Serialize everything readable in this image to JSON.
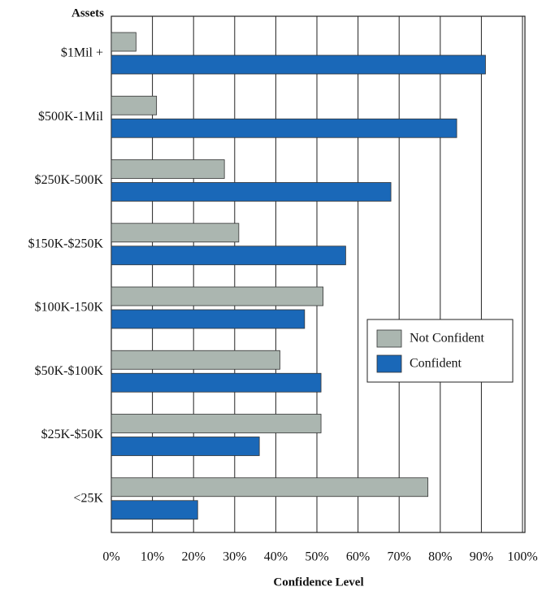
{
  "chart_data": {
    "type": "bar",
    "orientation": "horizontal",
    "y_label": "Assets",
    "x_label": "Confidence Level",
    "categories": [
      "$1Mil +",
      "$500K-1Mil",
      "$250K-500K",
      "$150K-$250K",
      "$100K-150K",
      "$50K-$100K",
      "$25K-$50K",
      "<25K"
    ],
    "series": [
      {
        "name": "Not Confident",
        "color": "#abb6b0",
        "values": [
          6,
          11,
          27.5,
          31,
          51.5,
          41,
          51,
          77
        ]
      },
      {
        "name": "Confident",
        "color": "#1a68b8",
        "values": [
          91,
          84,
          68,
          57,
          47,
          51,
          36,
          21
        ]
      }
    ],
    "xlim": [
      0,
      100
    ],
    "xticks": [
      {
        "value": 0,
        "label": "0%"
      },
      {
        "value": 10,
        "label": "10%"
      },
      {
        "value": 20,
        "label": "20%"
      },
      {
        "value": 30,
        "label": "30%"
      },
      {
        "value": 40,
        "label": "40%"
      },
      {
        "value": 50,
        "label": "50%"
      },
      {
        "value": 60,
        "label": "60%"
      },
      {
        "value": 70,
        "label": "70%"
      },
      {
        "value": 80,
        "label": "80%"
      },
      {
        "value": 90,
        "label": "90%"
      },
      {
        "value": 100,
        "label": "100%"
      }
    ],
    "grid": true,
    "legend": "center right"
  }
}
